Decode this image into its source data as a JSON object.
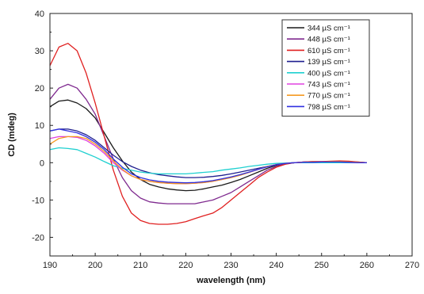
{
  "chart_data": {
    "type": "line",
    "xlabel": "wavelength (nm)",
    "ylabel": "CD (mdeg)",
    "xlim": [
      190,
      270
    ],
    "ylim": [
      -25,
      40
    ],
    "xticks": [
      190,
      200,
      210,
      220,
      230,
      240,
      250,
      260,
      270
    ],
    "yticks": [
      -20,
      -10,
      0,
      10,
      20,
      30,
      40
    ],
    "grid": false,
    "legend_position": "top-right",
    "series": [
      {
        "name": "344 µS cm⁻¹",
        "color": "#1a1a1a",
        "x": [
          190,
          192,
          194,
          196,
          198,
          200,
          202,
          204,
          206,
          208,
          210,
          212,
          214,
          216,
          218,
          220,
          222,
          224,
          226,
          228,
          230,
          232,
          234,
          236,
          238,
          240,
          242,
          244,
          246,
          248,
          250,
          252,
          254,
          256,
          258,
          260
        ],
        "y": [
          15,
          16.5,
          16.8,
          16,
          14.5,
          12,
          8,
          4,
          0.5,
          -2.5,
          -4.5,
          -5.8,
          -6.5,
          -7,
          -7.3,
          -7.5,
          -7.4,
          -7,
          -6.5,
          -6,
          -5.3,
          -4.5,
          -3.5,
          -2.5,
          -1.5,
          -0.7,
          -0.2,
          0,
          0.1,
          0.1,
          0.2,
          0.1,
          0.2,
          0.1,
          0,
          0
        ]
      },
      {
        "name": "448 µS cm⁻¹",
        "color": "#7f2a8f",
        "x": [
          190,
          192,
          194,
          196,
          198,
          200,
          202,
          204,
          206,
          208,
          210,
          212,
          214,
          216,
          218,
          220,
          222,
          224,
          226,
          228,
          230,
          232,
          234,
          236,
          238,
          240,
          242,
          244,
          246,
          248,
          250,
          252,
          254,
          256,
          258,
          260
        ],
        "y": [
          17,
          20,
          21,
          20,
          17,
          13,
          7,
          1,
          -4,
          -7.5,
          -9.5,
          -10.5,
          -10.8,
          -11,
          -11,
          -11,
          -11,
          -10.5,
          -10,
          -9,
          -8,
          -6.5,
          -5,
          -3.5,
          -2,
          -1,
          -0.3,
          0,
          0.2,
          0.3,
          0.3,
          0.3,
          0.4,
          0.3,
          0.2,
          0
        ]
      },
      {
        "name": "610 µS cm⁻¹",
        "color": "#e02020",
        "x": [
          190,
          192,
          194,
          196,
          198,
          200,
          202,
          204,
          206,
          208,
          210,
          212,
          214,
          216,
          218,
          220,
          222,
          224,
          226,
          228,
          230,
          232,
          234,
          236,
          238,
          240,
          242,
          244,
          246,
          248,
          250,
          252,
          254,
          256,
          258,
          260
        ],
        "y": [
          26,
          31,
          32,
          30,
          24,
          16,
          7,
          -2,
          -9,
          -13.5,
          -15.5,
          -16.3,
          -16.5,
          -16.5,
          -16.3,
          -15.8,
          -15,
          -14.2,
          -13.5,
          -12,
          -10,
          -8,
          -6,
          -4,
          -2.5,
          -1.2,
          -0.4,
          0,
          0.2,
          0.3,
          0.3,
          0.4,
          0.5,
          0.4,
          0.2,
          0
        ]
      },
      {
        "name": "139 µS cm⁻¹",
        "color": "#1f1f8f",
        "x": [
          190,
          192,
          194,
          196,
          198,
          200,
          202,
          204,
          206,
          208,
          210,
          212,
          214,
          216,
          218,
          220,
          222,
          224,
          226,
          228,
          230,
          232,
          234,
          236,
          238,
          240,
          242,
          244,
          246,
          248,
          250,
          252,
          254,
          256,
          258,
          260
        ],
        "y": [
          8.5,
          9,
          9,
          8.5,
          7.5,
          6,
          4,
          2,
          0.3,
          -1,
          -2,
          -2.7,
          -3.2,
          -3.5,
          -3.8,
          -4,
          -4,
          -3.9,
          -3.7,
          -3.4,
          -3,
          -2.5,
          -2,
          -1.5,
          -1,
          -0.5,
          -0.2,
          0,
          0,
          0.1,
          0.1,
          0.1,
          0.1,
          0,
          0,
          0
        ]
      },
      {
        "name": "400 µS cm⁻¹",
        "color": "#1fd0d0",
        "x": [
          190,
          192,
          194,
          196,
          198,
          200,
          202,
          204,
          206,
          208,
          210,
          212,
          214,
          216,
          218,
          220,
          222,
          224,
          226,
          228,
          230,
          232,
          234,
          236,
          238,
          240,
          242,
          244,
          246,
          248,
          250,
          252,
          254,
          256,
          258,
          260
        ],
        "y": [
          3.5,
          4,
          3.8,
          3.5,
          2.5,
          1.5,
          0.3,
          -0.8,
          -1.5,
          -2,
          -2.5,
          -2.8,
          -3,
          -3,
          -3,
          -3,
          -2.8,
          -2.6,
          -2.4,
          -2,
          -1.7,
          -1.4,
          -1,
          -0.7,
          -0.4,
          -0.2,
          -0.1,
          0,
          0,
          0,
          0,
          0,
          0,
          0,
          0,
          0
        ]
      },
      {
        "name": "743 µS cm⁻¹",
        "color": "#e040e0",
        "x": [
          190,
          192,
          194,
          196,
          198,
          200,
          202,
          204,
          206,
          208,
          210,
          212,
          214,
          216,
          218,
          220,
          222,
          224,
          226,
          228,
          230,
          232,
          234,
          236,
          238,
          240,
          242,
          244,
          246,
          248,
          250,
          252,
          254,
          256,
          258,
          260
        ],
        "y": [
          6.5,
          7,
          7,
          6.8,
          6,
          4.5,
          2.5,
          0,
          -2,
          -3.5,
          -4.5,
          -5,
          -5.3,
          -5.5,
          -5.6,
          -5.6,
          -5.5,
          -5.3,
          -5,
          -4.5,
          -4,
          -3.3,
          -2.6,
          -1.8,
          -1.1,
          -0.5,
          -0.2,
          0,
          0.1,
          0.1,
          0.2,
          0.2,
          0.2,
          0.1,
          0,
          0
        ]
      },
      {
        "name": "770 µS cm⁻¹",
        "color": "#f59a23",
        "x": [
          190,
          192,
          194,
          196,
          198,
          200,
          202,
          204,
          206,
          208,
          210,
          212,
          214,
          216,
          218,
          220,
          222,
          224,
          226,
          228,
          230,
          232,
          234,
          236,
          238,
          240,
          242,
          244,
          246,
          248,
          250,
          252,
          254,
          256,
          258,
          260
        ],
        "y": [
          5,
          6.5,
          7,
          7,
          6.5,
          5,
          3,
          0.5,
          -1.8,
          -3.5,
          -4.5,
          -5,
          -5.3,
          -5.5,
          -5.6,
          -5.6,
          -5.5,
          -5.3,
          -5,
          -4.5,
          -4,
          -3.4,
          -2.6,
          -1.8,
          -1,
          -0.5,
          -0.2,
          0,
          0.1,
          0.2,
          0.2,
          0.3,
          0.3,
          0.2,
          0.1,
          0
        ]
      },
      {
        "name": "798 µS cm⁻¹",
        "color": "#3030e0",
        "x": [
          190,
          192,
          194,
          196,
          198,
          200,
          202,
          204,
          206,
          208,
          210,
          212,
          214,
          216,
          218,
          220,
          222,
          224,
          226,
          228,
          230,
          232,
          234,
          236,
          238,
          240,
          242,
          244,
          246,
          248,
          250,
          252,
          254,
          256,
          258,
          260
        ],
        "y": [
          8.5,
          9,
          8.5,
          8,
          7,
          5.5,
          3.5,
          1,
          -1.2,
          -3,
          -4,
          -4.6,
          -5,
          -5.2,
          -5.3,
          -5.4,
          -5.3,
          -5.1,
          -4.8,
          -4.3,
          -3.8,
          -3.2,
          -2.5,
          -1.8,
          -1.1,
          -0.5,
          -0.2,
          0,
          0.1,
          0.1,
          0.2,
          0.2,
          0.2,
          0.1,
          0,
          0
        ]
      }
    ]
  }
}
